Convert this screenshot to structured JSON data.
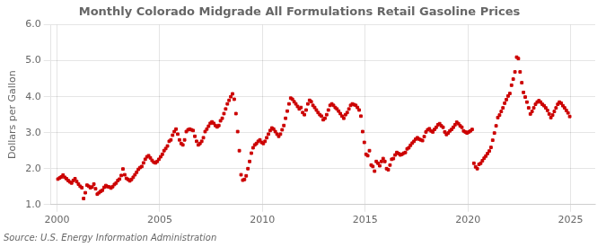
{
  "chart_data": {
    "type": "scatter",
    "title": "Monthly Colorado Midgrade All Formulations Retail Gasoline Prices",
    "ylabel": "Dollars per Gallon",
    "source": "Source: U.S. Energy Information Administration",
    "xlim": [
      1999.7,
      2026.2
    ],
    "ylim": [
      1.0,
      6.0
    ],
    "xticks": [
      2000,
      2005,
      2010,
      2015,
      2020,
      2025
    ],
    "yticks": [
      {
        "value": 1.0,
        "label": "1.0"
      },
      {
        "value": 2.0,
        "label": "2.0"
      },
      {
        "value": 3.0,
        "label": "3.0"
      },
      {
        "value": 4.0,
        "label": "4.0"
      },
      {
        "value": 5.0,
        "label": "5.0"
      },
      {
        "value": 6.0,
        "label": "6.0"
      }
    ],
    "grid": true,
    "color": "#CC0000",
    "marker": "square",
    "x": [
      2000.042,
      2000.125,
      2000.208,
      2000.292,
      2000.375,
      2000.458,
      2000.542,
      2000.625,
      2000.708,
      2000.792,
      2000.875,
      2000.958,
      2001.042,
      2001.125,
      2001.208,
      2001.292,
      2001.375,
      2001.458,
      2001.542,
      2001.625,
      2001.708,
      2001.792,
      2001.875,
      2001.958,
      2002.042,
      2002.125,
      2002.208,
      2002.292,
      2002.375,
      2002.458,
      2002.542,
      2002.625,
      2002.708,
      2002.792,
      2002.875,
      2002.958,
      2003.042,
      2003.125,
      2003.208,
      2003.292,
      2003.375,
      2003.458,
      2003.542,
      2003.625,
      2003.708,
      2003.792,
      2003.875,
      2003.958,
      2004.042,
      2004.125,
      2004.208,
      2004.292,
      2004.375,
      2004.458,
      2004.542,
      2004.625,
      2004.708,
      2004.792,
      2004.875,
      2004.958,
      2005.042,
      2005.125,
      2005.208,
      2005.292,
      2005.375,
      2005.458,
      2005.542,
      2005.625,
      2005.708,
      2005.792,
      2005.875,
      2005.958,
      2006.042,
      2006.125,
      2006.208,
      2006.292,
      2006.375,
      2006.458,
      2006.542,
      2006.625,
      2006.708,
      2006.792,
      2006.875,
      2006.958,
      2007.042,
      2007.125,
      2007.208,
      2007.292,
      2007.375,
      2007.458,
      2007.542,
      2007.625,
      2007.708,
      2007.792,
      2007.875,
      2007.958,
      2008.042,
      2008.125,
      2008.208,
      2008.292,
      2008.375,
      2008.458,
      2008.542,
      2008.625,
      2008.708,
      2008.792,
      2008.875,
      2008.958,
      2009.042,
      2009.125,
      2009.208,
      2009.292,
      2009.375,
      2009.458,
      2009.542,
      2009.625,
      2009.708,
      2009.792,
      2009.875,
      2009.958,
      2010.042,
      2010.125,
      2010.208,
      2010.292,
      2010.375,
      2010.458,
      2010.542,
      2010.625,
      2010.708,
      2010.792,
      2010.875,
      2010.958,
      2011.042,
      2011.125,
      2011.208,
      2011.292,
      2011.375,
      2011.458,
      2011.542,
      2011.625,
      2011.708,
      2011.792,
      2011.875,
      2011.958,
      2012.042,
      2012.125,
      2012.208,
      2012.292,
      2012.375,
      2012.458,
      2012.542,
      2012.625,
      2012.708,
      2012.792,
      2012.875,
      2012.958,
      2013.042,
      2013.125,
      2013.208,
      2013.292,
      2013.375,
      2013.458,
      2013.542,
      2013.625,
      2013.708,
      2013.792,
      2013.875,
      2013.958,
      2014.042,
      2014.125,
      2014.208,
      2014.292,
      2014.375,
      2014.458,
      2014.542,
      2014.625,
      2014.708,
      2014.792,
      2014.875,
      2014.958,
      2015.042,
      2015.125,
      2015.208,
      2015.292,
      2015.375,
      2015.458,
      2015.542,
      2015.625,
      2015.708,
      2015.792,
      2015.875,
      2015.958,
      2016.042,
      2016.125,
      2016.208,
      2016.292,
      2016.375,
      2016.458,
      2016.542,
      2016.625,
      2016.708,
      2016.792,
      2016.875,
      2016.958,
      2017.042,
      2017.125,
      2017.208,
      2017.292,
      2017.375,
      2017.458,
      2017.542,
      2017.625,
      2017.708,
      2017.792,
      2017.875,
      2017.958,
      2018.042,
      2018.125,
      2018.208,
      2018.292,
      2018.375,
      2018.458,
      2018.542,
      2018.625,
      2018.708,
      2018.792,
      2018.875,
      2018.958,
      2019.042,
      2019.125,
      2019.208,
      2019.292,
      2019.375,
      2019.458,
      2019.542,
      2019.625,
      2019.708,
      2019.792,
      2019.875,
      2019.958,
      2020.042,
      2020.125,
      2020.208,
      2020.292,
      2020.375,
      2020.458,
      2020.542,
      2020.625,
      2020.708,
      2020.792,
      2020.875,
      2020.958,
      2021.042,
      2021.125,
      2021.208,
      2021.292,
      2021.375,
      2021.458,
      2021.542,
      2021.625,
      2021.708,
      2021.792,
      2021.875,
      2021.958,
      2022.042,
      2022.125,
      2022.208,
      2022.292,
      2022.375,
      2022.458,
      2022.542,
      2022.625,
      2022.708,
      2022.792,
      2022.875,
      2022.958,
      2023.042,
      2023.125,
      2023.208,
      2023.292,
      2023.375,
      2023.458,
      2023.542,
      2023.625,
      2023.708,
      2023.792,
      2023.875,
      2023.958,
      2024.042,
      2024.125,
      2024.208,
      2024.292,
      2024.375,
      2024.458,
      2024.542,
      2024.625,
      2024.708,
      2024.792,
      2024.875,
      2024.958
    ],
    "values": [
      1.71,
      1.74,
      1.77,
      1.82,
      1.76,
      1.72,
      1.67,
      1.63,
      1.6,
      1.67,
      1.72,
      1.64,
      1.57,
      1.51,
      1.47,
      1.17,
      1.33,
      1.54,
      1.51,
      1.47,
      1.49,
      1.57,
      1.44,
      1.29,
      1.33,
      1.37,
      1.4,
      1.48,
      1.53,
      1.5,
      1.49,
      1.46,
      1.5,
      1.56,
      1.6,
      1.67,
      1.71,
      1.81,
      1.99,
      1.83,
      1.73,
      1.7,
      1.66,
      1.7,
      1.76,
      1.83,
      1.9,
      1.98,
      2.03,
      2.06,
      2.16,
      2.26,
      2.33,
      2.36,
      2.3,
      2.23,
      2.18,
      2.16,
      2.2,
      2.26,
      2.33,
      2.4,
      2.5,
      2.56,
      2.63,
      2.76,
      2.8,
      2.93,
      3.03,
      3.1,
      2.96,
      2.8,
      2.7,
      2.66,
      2.8,
      3.03,
      3.08,
      3.1,
      3.08,
      3.06,
      2.9,
      2.76,
      2.66,
      2.7,
      2.76,
      2.86,
      3.03,
      3.1,
      3.18,
      3.26,
      3.3,
      3.26,
      3.2,
      3.16,
      3.2,
      3.33,
      3.4,
      3.53,
      3.66,
      3.8,
      3.9,
      4.0,
      4.08,
      3.93,
      3.53,
      3.03,
      2.5,
      1.83,
      1.68,
      1.7,
      1.8,
      2.0,
      2.2,
      2.43,
      2.58,
      2.66,
      2.7,
      2.76,
      2.8,
      2.73,
      2.7,
      2.76,
      2.86,
      2.96,
      3.06,
      3.13,
      3.1,
      3.03,
      2.96,
      2.9,
      2.96,
      3.08,
      3.2,
      3.4,
      3.6,
      3.8,
      3.96,
      3.93,
      3.86,
      3.8,
      3.73,
      3.66,
      3.7,
      3.56,
      3.5,
      3.63,
      3.8,
      3.9,
      3.86,
      3.76,
      3.7,
      3.63,
      3.56,
      3.5,
      3.46,
      3.36,
      3.4,
      3.5,
      3.63,
      3.76,
      3.8,
      3.76,
      3.7,
      3.66,
      3.6,
      3.53,
      3.46,
      3.4,
      3.5,
      3.56,
      3.66,
      3.76,
      3.8,
      3.78,
      3.76,
      3.7,
      3.63,
      3.46,
      3.03,
      2.73,
      2.4,
      2.36,
      2.5,
      2.1,
      2.06,
      1.93,
      2.2,
      2.15,
      2.08,
      2.2,
      2.28,
      2.2,
      2.0,
      1.97,
      2.1,
      2.26,
      2.28,
      2.38,
      2.45,
      2.42,
      2.38,
      2.4,
      2.43,
      2.45,
      2.55,
      2.58,
      2.65,
      2.71,
      2.76,
      2.82,
      2.86,
      2.82,
      2.8,
      2.78,
      2.89,
      3.02,
      3.08,
      3.11,
      3.05,
      3.02,
      3.09,
      3.15,
      3.22,
      3.25,
      3.19,
      3.15,
      3.02,
      2.95,
      2.99,
      3.05,
      3.09,
      3.15,
      3.22,
      3.29,
      3.25,
      3.19,
      3.15,
      3.05,
      3.02,
      2.99,
      3.02,
      3.05,
      3.09,
      2.15,
      2.05,
      2.0,
      2.12,
      2.15,
      2.22,
      2.29,
      2.35,
      2.42,
      2.49,
      2.59,
      2.79,
      2.99,
      3.19,
      3.42,
      3.49,
      3.59,
      3.69,
      3.82,
      3.92,
      4.02,
      4.09,
      4.32,
      4.49,
      4.69,
      5.1,
      5.06,
      4.69,
      4.39,
      4.12,
      3.99,
      3.85,
      3.69,
      3.52,
      3.59,
      3.69,
      3.79,
      3.85,
      3.89,
      3.85,
      3.79,
      3.75,
      3.69,
      3.62,
      3.52,
      3.42,
      3.49,
      3.59,
      3.69,
      3.79,
      3.85,
      3.82,
      3.75,
      3.69,
      3.62,
      3.55,
      3.45
    ]
  }
}
